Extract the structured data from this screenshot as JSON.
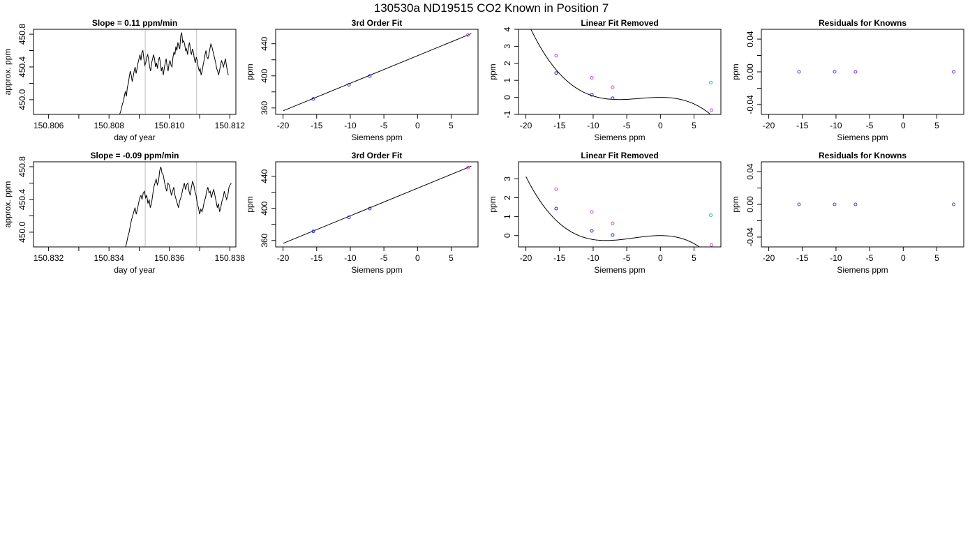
{
  "page_title": "130530a      ND19515    CO2 Known in Position  7",
  "chart_data": [
    {
      "id": "r1c1",
      "type": "line",
      "title": "Slope =  0.11  ppm/min",
      "xlabel": "day of year",
      "ylabel": "approx. ppm",
      "xlim": [
        150.8055,
        150.8122
      ],
      "ylim": [
        449.82,
        450.86
      ],
      "xticks": [
        150.806,
        150.807,
        150.808,
        150.809,
        150.81,
        150.811,
        150.812
      ],
      "xticklabels": [
        "150.806",
        "",
        "150.808",
        "",
        "150.810",
        "",
        "150.812"
      ],
      "yticks": [
        450.0,
        450.2,
        450.4,
        450.6,
        450.8
      ],
      "yticklabels": [
        "450.0",
        "",
        "450.4",
        "",
        "450.8"
      ],
      "vlines": [
        150.8092,
        150.8109
      ],
      "series": [
        {
          "x_start": 150.80835,
          "x_end": 150.81195,
          "values": [
            449.82,
            449.85,
            449.9,
            449.95,
            449.98,
            450.05,
            450.1,
            450.04,
            450.15,
            450.2,
            450.28,
            450.35,
            450.3,
            450.22,
            450.28,
            450.35,
            450.4,
            450.32,
            450.38,
            450.45,
            450.5,
            450.55,
            450.48,
            450.58,
            450.6,
            450.5,
            450.42,
            450.45,
            450.52,
            450.55,
            450.48,
            450.4,
            450.35,
            450.45,
            450.5,
            450.55,
            450.5,
            450.4,
            450.45,
            450.38,
            450.48,
            450.52,
            450.45,
            450.35,
            450.4,
            450.3,
            450.38,
            450.45,
            450.5,
            450.4,
            450.35,
            450.44,
            450.48,
            450.42,
            450.4,
            450.52,
            450.58,
            450.55,
            450.65,
            450.6,
            450.7,
            450.65,
            450.62,
            450.78,
            450.82,
            450.7,
            450.72,
            450.68,
            450.6,
            450.62,
            450.55,
            450.65,
            450.7,
            450.6,
            450.55,
            450.62,
            450.58,
            450.5,
            450.45,
            450.52,
            450.48,
            450.4,
            450.35,
            450.38,
            450.3,
            450.35,
            450.42,
            450.48,
            450.55,
            450.6,
            450.52,
            450.5,
            450.55,
            450.62,
            450.68,
            450.65,
            450.6,
            450.55,
            450.5,
            450.45,
            450.38,
            450.35,
            450.3,
            450.36,
            450.42,
            450.48,
            450.44,
            450.4,
            450.45,
            450.5,
            450.42,
            450.35,
            450.3
          ]
        }
      ]
    },
    {
      "id": "r1c2",
      "type": "scatter",
      "title": "3rd Order Fit",
      "xlabel": "Siemens ppm",
      "ylabel": "ppm",
      "xlim": [
        -21.1,
        9.0
      ],
      "ylim": [
        352.0,
        458.0
      ],
      "xticks": [
        -20,
        -15,
        -10,
        -5,
        0,
        5
      ],
      "xticklabels": [
        "-20",
        "-15",
        "-10",
        "-5",
        "0",
        "5"
      ],
      "yticks": [
        360,
        380,
        400,
        420,
        440
      ],
      "yticklabels": [
        "360",
        "",
        "400",
        "",
        "440"
      ],
      "curve": {
        "kind": "line",
        "x0": -20.0,
        "y0": 356.4,
        "x1": 8.0,
        "y1": 452.6
      },
      "points": [
        {
          "x": -15.5,
          "y": 371.3,
          "color": "#2222dd"
        },
        {
          "x": -10.2,
          "y": 388.9,
          "color": "#2222dd"
        },
        {
          "x": -7.1,
          "y": 399.8,
          "color": "#2222dd"
        },
        {
          "x": 7.5,
          "y": 450.8,
          "color": "#cc44cc"
        }
      ]
    },
    {
      "id": "r1c3",
      "type": "scatter",
      "title": "Linear Fit Removed",
      "xlabel": "Siemens ppm",
      "ylabel": "ppm",
      "xlim": [
        -21.1,
        9.0
      ],
      "ylim": [
        -1.0,
        4.0
      ],
      "xticks": [
        -20,
        -15,
        -10,
        -5,
        0,
        5
      ],
      "xticklabels": [
        "-20",
        "-15",
        "-10",
        "-5",
        "0",
        "5"
      ],
      "yticks": [
        -1,
        0,
        1,
        2,
        3,
        4
      ],
      "yticklabels": [
        "-1",
        "0",
        "1",
        "2",
        "3",
        "4"
      ],
      "curve": {
        "kind": "cubic",
        "coeffs": [
          0.0,
          0.0,
          -0.01,
          -0.00108
        ],
        "xrange": [
          -20.0,
          8.0
        ]
      },
      "points": [
        {
          "x": -15.5,
          "y": 2.45,
          "color": "#cc44cc"
        },
        {
          "x": -10.2,
          "y": 1.15,
          "color": "#cc44cc"
        },
        {
          "x": -7.1,
          "y": 0.6,
          "color": "#cc44cc"
        },
        {
          "x": -15.5,
          "y": 1.43,
          "color": "#2222dd"
        },
        {
          "x": -10.2,
          "y": 0.15,
          "color": "#2222dd"
        },
        {
          "x": -7.1,
          "y": -0.05,
          "color": "#2222dd"
        },
        {
          "x": 7.5,
          "y": 0.87,
          "color": "#22bbbb"
        },
        {
          "x": 7.6,
          "y": -0.75,
          "color": "#cc44cc"
        }
      ]
    },
    {
      "id": "r1c4",
      "type": "scatter",
      "title": "Residuals for Knowns",
      "xlabel": "Siemens ppm",
      "ylabel": "ppm",
      "xlim": [
        -21.1,
        9.0
      ],
      "ylim": [
        -0.052,
        0.052
      ],
      "xticks": [
        -20,
        -15,
        -10,
        -5,
        0,
        5
      ],
      "xticklabels": [
        "-20",
        "-15",
        "-10",
        "-5",
        "0",
        "5"
      ],
      "yticks": [
        -0.04,
        -0.02,
        0.0,
        0.02,
        0.04
      ],
      "yticklabels": [
        "-0.04",
        "",
        "0.00",
        "",
        "0.04"
      ],
      "points": [
        {
          "x": -15.5,
          "y": 0.0,
          "color": "#6633cc"
        },
        {
          "x": -10.2,
          "y": 0.0,
          "color": "#6633cc"
        },
        {
          "x": -7.1,
          "y": 0.0,
          "color": "#6633cc"
        },
        {
          "x": 7.5,
          "y": 0.0,
          "color": "#6633cc"
        }
      ]
    },
    {
      "id": "r2c1",
      "type": "line",
      "title": "Slope =  -0.09  ppm/min",
      "xlabel": "day of year",
      "ylabel": "approx. ppm",
      "xlim": [
        150.8315,
        150.8382
      ],
      "ylim": [
        449.82,
        450.86
      ],
      "xticks": [
        150.832,
        150.833,
        150.834,
        150.835,
        150.836,
        150.837,
        150.838
      ],
      "xticklabels": [
        "150.832",
        "",
        "150.834",
        "",
        "150.836",
        "",
        "150.838"
      ],
      "yticks": [
        450.0,
        450.2,
        450.4,
        450.6,
        450.8
      ],
      "yticklabels": [
        "450.0",
        "",
        "450.4",
        "",
        "450.8"
      ],
      "vlines": [
        150.8352,
        150.8369
      ],
      "series": [
        {
          "x_start": 150.83455,
          "x_end": 150.83805,
          "values": [
            449.82,
            449.88,
            449.95,
            450.0,
            450.08,
            450.15,
            450.2,
            450.25,
            450.3,
            450.22,
            450.28,
            450.35,
            450.42,
            450.45,
            450.4,
            450.48,
            450.5,
            450.42,
            450.45,
            450.35,
            450.4,
            450.3,
            450.35,
            450.45,
            450.55,
            450.6,
            450.65,
            450.58,
            450.62,
            450.75,
            450.8,
            450.72,
            450.7,
            450.62,
            450.55,
            450.5,
            450.6,
            450.58,
            450.52,
            450.45,
            450.5,
            450.55,
            450.45,
            450.4,
            450.35,
            450.3,
            450.38,
            450.42,
            450.48,
            450.55,
            450.6,
            450.52,
            450.58,
            450.6,
            450.5,
            450.45,
            450.55,
            450.62,
            450.58,
            450.5,
            450.45,
            450.35,
            450.3,
            450.22,
            450.28,
            450.25,
            450.3,
            450.38,
            450.42,
            450.5,
            450.55,
            450.48,
            450.5,
            450.42,
            450.48,
            450.52,
            450.45,
            450.38,
            450.3,
            450.35,
            450.25,
            450.3,
            450.38,
            450.42,
            450.5,
            450.45,
            450.4,
            450.45,
            450.55,
            450.58,
            450.6
          ]
        }
      ]
    },
    {
      "id": "r2c2",
      "type": "scatter",
      "title": "3rd Order Fit",
      "xlabel": "Siemens ppm",
      "ylabel": "ppm",
      "xlim": [
        -21.1,
        9.0
      ],
      "ylim": [
        352.0,
        458.0
      ],
      "xticks": [
        -20,
        -15,
        -10,
        -5,
        0,
        5
      ],
      "xticklabels": [
        "-20",
        "-15",
        "-10",
        "-5",
        "0",
        "5"
      ],
      "yticks": [
        360,
        380,
        400,
        420,
        440
      ],
      "yticklabels": [
        "360",
        "",
        "400",
        "",
        "440"
      ],
      "curve": {
        "kind": "line",
        "x0": -20.0,
        "y0": 356.4,
        "x1": 8.0,
        "y1": 452.6
      },
      "points": [
        {
          "x": -15.5,
          "y": 371.3,
          "color": "#2222dd"
        },
        {
          "x": -10.2,
          "y": 388.9,
          "color": "#2222dd"
        },
        {
          "x": -7.1,
          "y": 399.8,
          "color": "#2222dd"
        },
        {
          "x": 7.5,
          "y": 450.8,
          "color": "#cc44cc"
        }
      ]
    },
    {
      "id": "r2c3",
      "type": "scatter",
      "title": "Linear Fit Removed",
      "xlabel": "Siemens ppm",
      "ylabel": "ppm",
      "xlim": [
        -21.1,
        9.0
      ],
      "ylim": [
        -0.6,
        3.9
      ],
      "xticks": [
        -20,
        -15,
        -10,
        -5,
        0,
        5
      ],
      "xticklabels": [
        "-20",
        "-15",
        "-10",
        "-5",
        "0",
        "5"
      ],
      "yticks": [
        0,
        1,
        2,
        3
      ],
      "yticklabels": [
        "0",
        "1",
        "2",
        "3"
      ],
      "curve": {
        "kind": "cubic",
        "coeffs": [
          0.0,
          0.0,
          -0.012,
          -0.00099
        ],
        "xrange": [
          -20.0,
          8.0
        ]
      },
      "points": [
        {
          "x": -15.5,
          "y": 2.45,
          "color": "#cc44cc"
        },
        {
          "x": -10.2,
          "y": 1.25,
          "color": "#cc44cc"
        },
        {
          "x": -7.1,
          "y": 0.65,
          "color": "#cc44cc"
        },
        {
          "x": -15.5,
          "y": 1.43,
          "color": "#2222dd"
        },
        {
          "x": -10.2,
          "y": 0.25,
          "color": "#2222dd"
        },
        {
          "x": -7.1,
          "y": 0.03,
          "color": "#2222dd"
        },
        {
          "x": 7.5,
          "y": 1.08,
          "color": "#22bbbb"
        },
        {
          "x": 7.6,
          "y": -0.5,
          "color": "#cc44cc"
        }
      ]
    },
    {
      "id": "r2c4",
      "type": "scatter",
      "title": "Residuals for Knowns",
      "xlabel": "Siemens ppm",
      "ylabel": "ppm",
      "xlim": [
        -21.1,
        9.0
      ],
      "ylim": [
        -0.052,
        0.052
      ],
      "xticks": [
        -20,
        -15,
        -10,
        -5,
        0,
        5
      ],
      "xticklabels": [
        "-20",
        "-15",
        "-10",
        "-5",
        "0",
        "5"
      ],
      "yticks": [
        -0.04,
        -0.02,
        0.0,
        0.02,
        0.04
      ],
      "yticklabels": [
        "-0.04",
        "",
        "0.00",
        "",
        "0.04"
      ],
      "points": [
        {
          "x": -15.5,
          "y": 0.0,
          "color": "#6633cc"
        },
        {
          "x": -10.2,
          "y": 0.0,
          "color": "#6633cc"
        },
        {
          "x": -7.1,
          "y": 0.0,
          "color": "#6633cc"
        },
        {
          "x": 7.5,
          "y": 0.0,
          "color": "#6633cc"
        }
      ]
    }
  ]
}
